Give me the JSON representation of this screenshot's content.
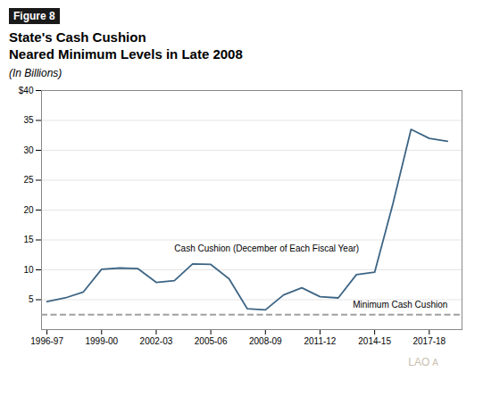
{
  "chart_data": {
    "type": "line",
    "figure_label": "Figure 8",
    "title": "State's Cash Cushion\nNeared Minimum Levels in Late 2008",
    "subtitle": "(In Billions)",
    "x": [
      0,
      1,
      2,
      3,
      4,
      5,
      6,
      7,
      8,
      9,
      10,
      11,
      12,
      13,
      14,
      15,
      16,
      17,
      18,
      19,
      20,
      21,
      22
    ],
    "values": [
      4.7,
      5.3,
      6.3,
      10.1,
      10.3,
      10.2,
      7.9,
      8.2,
      11.0,
      10.9,
      8.5,
      3.5,
      3.3,
      5.8,
      7.0,
      5.5,
      5.3,
      9.2,
      9.6,
      21.0,
      33.5,
      32.0,
      31.5
    ],
    "color": "#3d6585",
    "reference_lines": [
      {
        "value": 2.5,
        "color": "#a0a0a0",
        "line_style": "dashed"
      }
    ],
    "xlim": [
      -0.3,
      22.8
    ],
    "xticks": [
      {
        "value": 0,
        "label": "1996-97"
      },
      {
        "value": 3,
        "label": "1999-00"
      },
      {
        "value": 6,
        "label": "2002-03"
      },
      {
        "value": 9,
        "label": "2005-06"
      },
      {
        "value": 12,
        "label": "2008-09"
      },
      {
        "value": 15,
        "label": "2011-12"
      },
      {
        "value": 18,
        "label": "2014-15"
      },
      {
        "value": 21,
        "label": "2017-18"
      }
    ],
    "ylim": [
      0,
      40
    ],
    "yticks": [
      5,
      10,
      15,
      20,
      25,
      30,
      35,
      {
        "value": 40,
        "label": "$40"
      }
    ],
    "grid": true,
    "annotations": [
      {
        "text": "Cash Cushion (December of Each Fiscal Year)",
        "x": 7.0,
        "y": 13.5
      },
      {
        "text": "Minimum Cash Cushion",
        "x": 16.8,
        "y": 4.2
      }
    ],
    "watermark": [
      "LAO",
      "A"
    ]
  }
}
